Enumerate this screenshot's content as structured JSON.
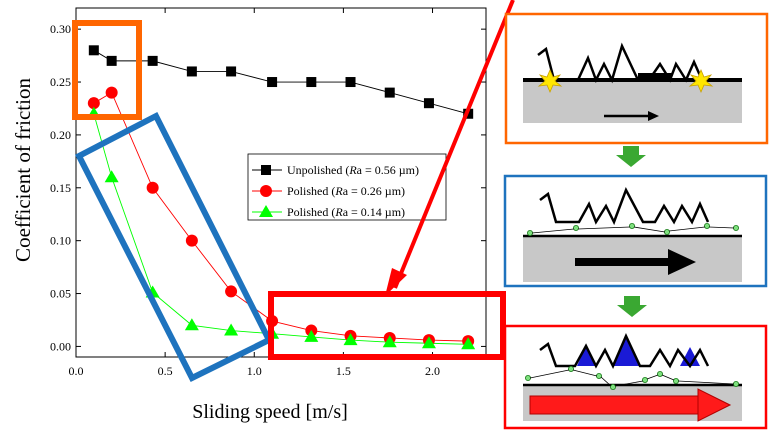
{
  "chart_data": {
    "type": "line",
    "xlabel": "Sliding speed [m/s]",
    "ylabel": "Coefficient of friction",
    "xlim": [
      0.0,
      2.3
    ],
    "ylim": [
      -0.01,
      0.32
    ],
    "x_ticks": [
      "0.0",
      "0.5",
      "1.0",
      "1.5",
      "2.0"
    ],
    "y_ticks": [
      "0.00",
      "0.05",
      "0.10",
      "0.15",
      "0.20",
      "0.25",
      "0.30"
    ],
    "x_tick_values": [
      0.0,
      0.5,
      1.0,
      1.5,
      2.0
    ],
    "y_tick_values": [
      0.0,
      0.05,
      0.1,
      0.15,
      0.2,
      0.25,
      0.3
    ],
    "grid": false,
    "legend_position": "center-right",
    "series": [
      {
        "name": "Unpolished (Ra = 0.56 µm)",
        "legend_prefix": "Unpolished (",
        "legend_italic": "R",
        "legend_rest": "a = 0.56 µm)",
        "marker": "square",
        "color": "#000000",
        "x": [
          0.1,
          0.2,
          0.43,
          0.65,
          0.87,
          1.1,
          1.32,
          1.54,
          1.76,
          1.98,
          2.2
        ],
        "y": [
          0.28,
          0.27,
          0.27,
          0.26,
          0.26,
          0.25,
          0.25,
          0.25,
          0.24,
          0.23,
          0.22
        ]
      },
      {
        "name": "Polished (Ra = 0.26 µm)",
        "legend_prefix": "Polished (",
        "legend_italic": "R",
        "legend_rest": "a = 0.26 µm)",
        "marker": "circle",
        "color": "#ff0000",
        "x": [
          0.1,
          0.2,
          0.43,
          0.65,
          0.87,
          1.1,
          1.32,
          1.54,
          1.76,
          1.98,
          2.2
        ],
        "y": [
          0.23,
          0.24,
          0.15,
          0.1,
          0.052,
          0.024,
          0.015,
          0.01,
          0.008,
          0.006,
          0.005
        ]
      },
      {
        "name": "Polished (Ra = 0.14 µm)",
        "legend_prefix": "Polished (",
        "legend_italic": "R",
        "legend_rest": "a = 0.14 µm)",
        "marker": "triangle",
        "color": "#00ff00",
        "x": [
          0.1,
          0.2,
          0.43,
          0.65,
          0.87,
          1.1,
          1.32,
          1.54,
          1.76,
          1.98,
          2.2
        ],
        "y": [
          0.22,
          0.16,
          0.051,
          0.02,
          0.015,
          0.012,
          0.009,
          0.006,
          0.004,
          0.003,
          0.002
        ]
      }
    ]
  },
  "annotations": {
    "orange_box_color": "#ff6600",
    "blue_box_color": "#1e73be",
    "red_box_color": "#ff0000",
    "flow_arrow_color": "#3aa832"
  }
}
